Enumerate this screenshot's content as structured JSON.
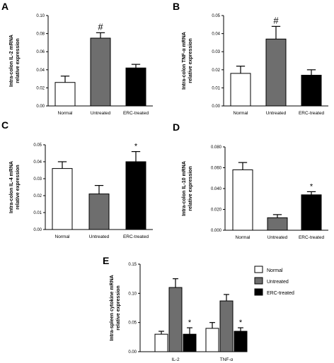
{
  "colors": {
    "normal": "#ffffff",
    "untreated": "#6e6e6e",
    "erc_treated": "#000000",
    "axis": "#000000"
  },
  "legend": {
    "entries": [
      {
        "label": "Normal",
        "color": "#ffffff"
      },
      {
        "label": "Untreated",
        "color": "#6e6e6e"
      },
      {
        "label": "ERC-treated",
        "color": "#000000"
      }
    ]
  },
  "chart_data": [
    {
      "panel": "A",
      "type": "bar",
      "ylabel_lines": [
        "Intra-colon IL-2 mRNA",
        "relative expression"
      ],
      "categories": [
        "Normal",
        "Untreated",
        "ERC-treated"
      ],
      "values": [
        0.026,
        0.075,
        0.042
      ],
      "errors": [
        0.007,
        0.006,
        0.004
      ],
      "annotations": [
        "",
        "#",
        ""
      ],
      "ylim": [
        0,
        0.1
      ],
      "yticks": [
        "0.00",
        "0.02",
        "0.04",
        "0.06",
        "0.08",
        "0.10"
      ]
    },
    {
      "panel": "B",
      "type": "bar",
      "ylabel_lines": [
        "Intra-colon TNF-α mRNA",
        "relative expression"
      ],
      "categories": [
        "Normal",
        "Untreated",
        "ERC-treated"
      ],
      "values": [
        0.018,
        0.037,
        0.017
      ],
      "errors": [
        0.004,
        0.007,
        0.003
      ],
      "annotations": [
        "",
        "#",
        ""
      ],
      "ylim": [
        0,
        0.05
      ],
      "yticks": [
        "0.00",
        "0.01",
        "0.02",
        "0.03",
        "0.04",
        "0.05"
      ]
    },
    {
      "panel": "C",
      "type": "bar",
      "ylabel_lines": [
        "Intra-colon IL-4 mRNA",
        "relative expression"
      ],
      "categories": [
        "Normal",
        "Untreated",
        "ERC-treated"
      ],
      "values": [
        0.036,
        0.021,
        0.04
      ],
      "errors": [
        0.004,
        0.005,
        0.006
      ],
      "annotations": [
        "",
        "",
        "*"
      ],
      "ylim": [
        0,
        0.05
      ],
      "yticks": [
        "0.00",
        "0.01",
        "0.02",
        "0.03",
        "0.04",
        "0.05"
      ]
    },
    {
      "panel": "D",
      "type": "bar",
      "ylabel_lines": [
        "Intra-colon IL-10 mRNA",
        "relative expression"
      ],
      "categories": [
        "Normal",
        "Untreated",
        "ERC-treated"
      ],
      "values": [
        0.058,
        0.012,
        0.034
      ],
      "errors": [
        0.007,
        0.003,
        0.003
      ],
      "annotations": [
        "",
        "",
        "*"
      ],
      "ylim": [
        0,
        0.08
      ],
      "yticks": [
        "0.000",
        "0.020",
        "0.040",
        "0.060",
        "0.080"
      ]
    },
    {
      "panel": "E",
      "type": "bar",
      "ylabel_lines": [
        "Intra-spleen cytokine mRNA",
        "relative expression"
      ],
      "categories": [
        "IL-2",
        "TNF-α"
      ],
      "series": [
        {
          "name": "Normal",
          "values": [
            0.03,
            0.04
          ],
          "errors": [
            0.005,
            0.01
          ],
          "annotations": [
            "",
            ""
          ]
        },
        {
          "name": "Untreated",
          "values": [
            0.11,
            0.087
          ],
          "errors": [
            0.015,
            0.011
          ],
          "annotations": [
            "",
            ""
          ]
        },
        {
          "name": "ERC-treated",
          "values": [
            0.03,
            0.035
          ],
          "errors": [
            0.011,
            0.006
          ],
          "annotations": [
            "*",
            "*"
          ]
        }
      ],
      "ylim": [
        0,
        0.15
      ],
      "yticks": [
        "0.00",
        "0.05",
        "0.10",
        "0.15"
      ]
    }
  ]
}
